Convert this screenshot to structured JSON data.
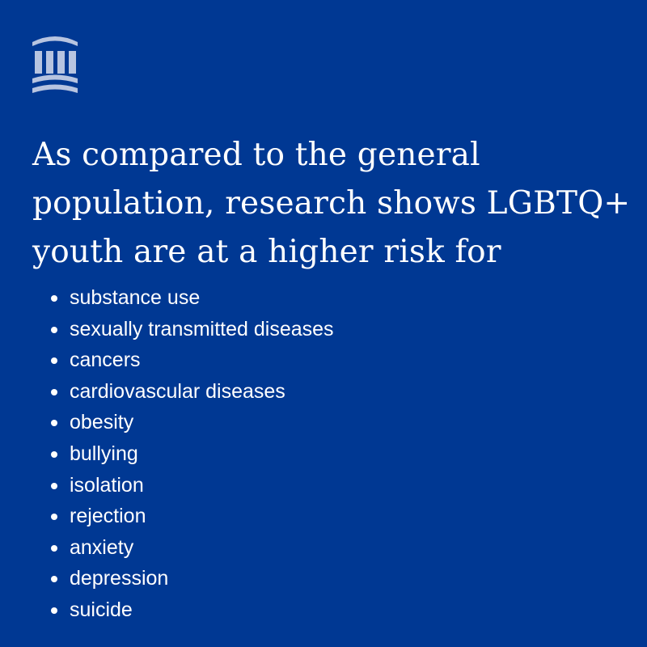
{
  "colors": {
    "background": "#003893",
    "text": "#ffffff",
    "logo": "#b7c4e0"
  },
  "logo": {
    "icon": "institution-columns-icon"
  },
  "headline": {
    "lines": [
      "As compared to the general",
      "population, research shows LGBTQ+",
      "youth are at a higher risk for"
    ]
  },
  "risks": [
    "substance use",
    "sexually transmitted diseases",
    "cancers",
    "cardiovascular diseases",
    "obesity",
    "bullying",
    "isolation",
    "rejection",
    "anxiety",
    "depression",
    "suicide"
  ]
}
